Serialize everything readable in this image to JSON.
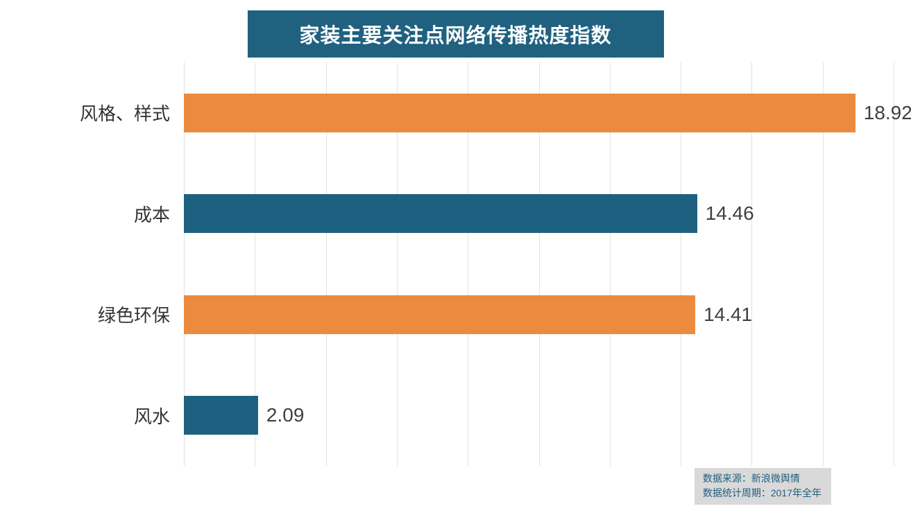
{
  "title": "家装主要关注点网络传播热度指数",
  "chart_data": {
    "type": "bar",
    "orientation": "horizontal",
    "title": "家装主要关注点网络传播热度指数",
    "categories": [
      "风格、样式",
      "成本",
      "绿色环保",
      "风水"
    ],
    "values": [
      18.92,
      14.46,
      14.41,
      2.09
    ],
    "value_labels": [
      "18.92",
      "14.46",
      "14.41",
      "2.09"
    ],
    "bar_colors": [
      "#EC8A3F",
      "#1E607F",
      "#EC8A3F",
      "#1E607F"
    ],
    "xlim": [
      0,
      20
    ],
    "gridline_step": 2,
    "grid": true,
    "legend": "none"
  },
  "colors": {
    "accent_teal": "#20617F",
    "accent_orange": "#EC8A3F",
    "gridline": "#E2E2E2",
    "source_bg": "#D9D9D9"
  },
  "source": {
    "line1": "数据来源：新浪微舆情",
    "line2": "数据统计周期：2017年全年"
  }
}
